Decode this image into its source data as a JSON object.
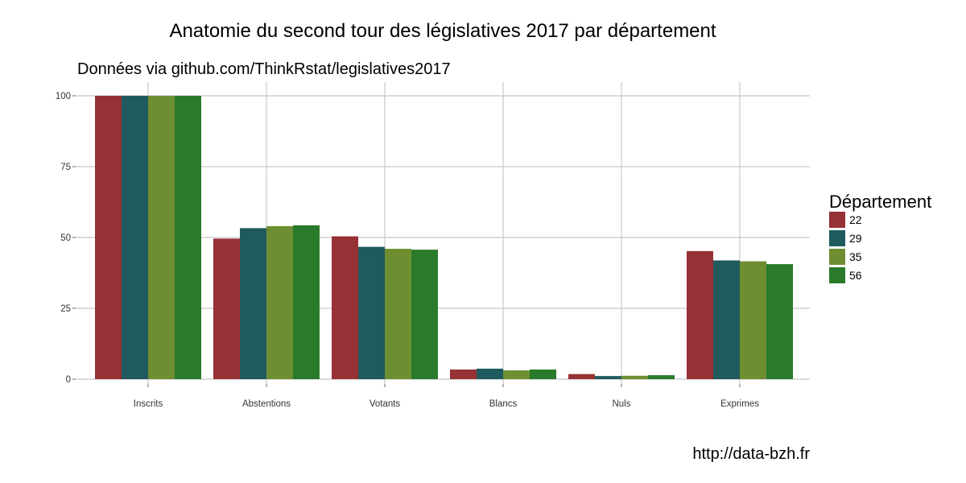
{
  "title": "Anatomie du second tour des législatives 2017 par département",
  "subtitle": "Données via github.com/ThinkRstat/legislatives2017",
  "caption": "http://data-bzh.fr",
  "legend": {
    "title": "Département"
  },
  "chart_data": {
    "type": "bar",
    "categories": [
      "Inscrits",
      "Abstentions",
      "Votants",
      "Blancs",
      "Nuls",
      "Exprimes"
    ],
    "series": [
      {
        "name": "22",
        "color": "#963135",
        "values": [
          100,
          49.6,
          50.4,
          3.4,
          1.8,
          45.2
        ]
      },
      {
        "name": "29",
        "color": "#1F5A5E",
        "values": [
          100,
          53.3,
          46.7,
          3.7,
          1.1,
          41.9
        ]
      },
      {
        "name": "35",
        "color": "#6E8E32",
        "values": [
          100,
          54.0,
          46.0,
          3.1,
          1.2,
          41.6
        ]
      },
      {
        "name": "56",
        "color": "#297A2A",
        "values": [
          100,
          54.3,
          45.7,
          3.4,
          1.4,
          40.6
        ]
      }
    ],
    "yticks": [
      0,
      25,
      50,
      75,
      100
    ],
    "ylim": [
      0,
      100
    ],
    "grid": true,
    "legend_position": "right"
  }
}
